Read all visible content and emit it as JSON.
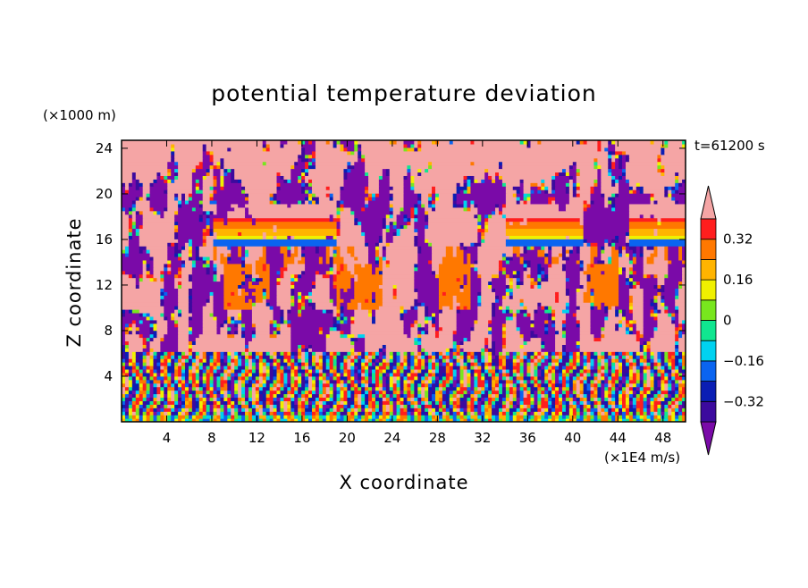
{
  "chart_data": {
    "type": "heatmap",
    "title": "potential temperature deviation",
    "xlabel": "X coordinate",
    "ylabel": "Z coordinate",
    "x_unit": "(×1E4 m/s)",
    "y_unit": "(×1000 m)",
    "time_label": "t=61200 s",
    "xlim": [
      0,
      50
    ],
    "ylim": [
      0,
      24.7
    ],
    "x_ticks": [
      4,
      8,
      12,
      16,
      20,
      24,
      28,
      32,
      36,
      40,
      44,
      48
    ],
    "y_ticks": [
      4,
      8,
      12,
      16,
      20,
      24
    ],
    "colorbar": {
      "levels": [
        -0.4,
        -0.32,
        -0.24,
        -0.16,
        -0.08,
        0,
        0.08,
        0.16,
        0.24,
        0.32,
        0.4
      ],
      "tick_values": [
        0.32,
        0.16,
        0,
        -0.16,
        -0.32
      ],
      "tick_labels": [
        "0.32",
        "0.16",
        "0",
        "−0.16",
        "−0.32"
      ],
      "colors": [
        "#7a0aa8",
        "#3c0a9e",
        "#0a1eb4",
        "#0a64f0",
        "#00d2f0",
        "#10e690",
        "#78e61e",
        "#f0f000",
        "#ffb400",
        "#ff7800",
        "#ff1e1e",
        "#f5a5a5"
      ],
      "extend": "both"
    },
    "features": [
      {
        "name": "stratospheric_pink",
        "z_range": [
          18,
          24.7
        ],
        "dominant_value": 0.45
      },
      {
        "name": "tropopause_warm_band",
        "z_range": [
          16.5,
          17.8
        ],
        "x_segments": [
          [
            8,
            19
          ],
          [
            34,
            41
          ],
          [
            45,
            50
          ]
        ],
        "value": 0.3
      },
      {
        "name": "tropopause_cold_band",
        "z_range": [
          15.4,
          16.2
        ],
        "x_segments": [
          [
            8,
            19
          ],
          [
            34,
            41
          ],
          [
            45,
            50
          ]
        ],
        "value": -0.2
      },
      {
        "name": "mid_troposphere_warm_patches",
        "z_range": [
          10,
          14
        ],
        "x_segments": [
          [
            9,
            13
          ],
          [
            19,
            23
          ],
          [
            28,
            31
          ],
          [
            41,
            44
          ]
        ],
        "value": 0.3
      },
      {
        "name": "boundary_layer_oscillations",
        "z_range": [
          0,
          6
        ],
        "amplitude": 0.4
      }
    ]
  }
}
